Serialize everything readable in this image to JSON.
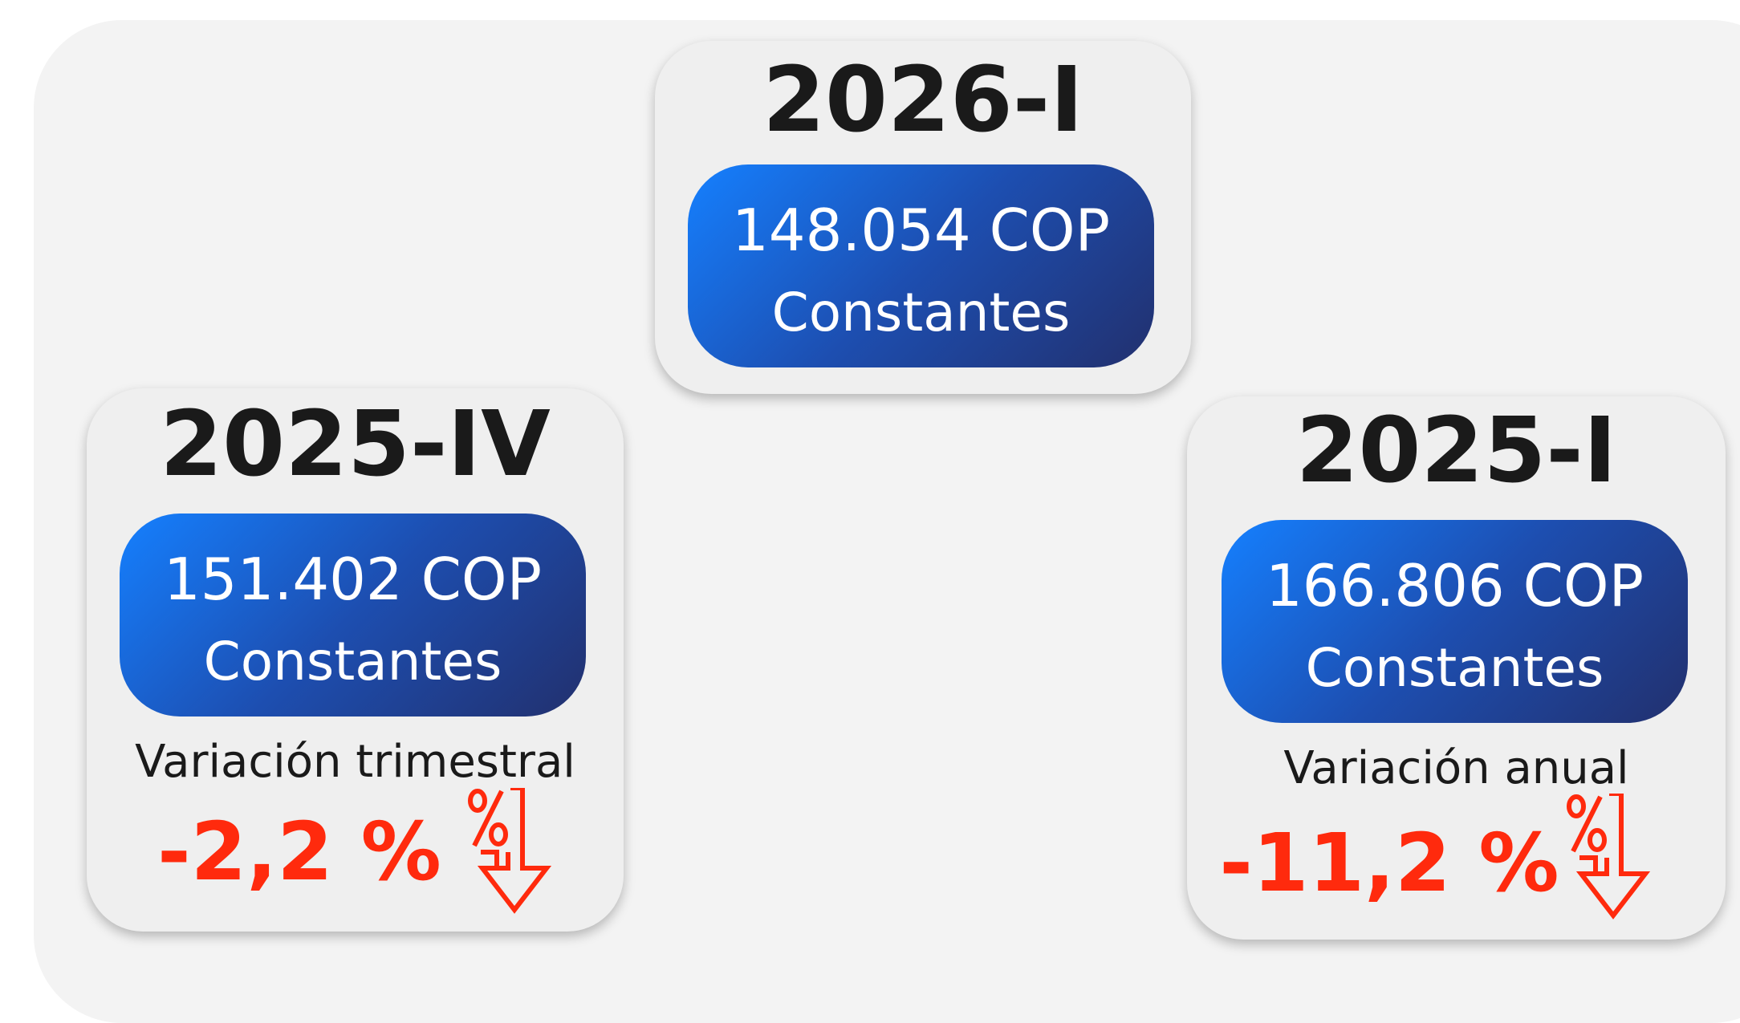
{
  "cards": [
    {
      "period": "2026-I",
      "value": "148.054 COP",
      "unit": "Constantes"
    },
    {
      "period": "2025-IV",
      "value": "151.402 COP",
      "unit": "Constantes",
      "variation_label": "Variación trimestral",
      "variation": "-2,2 %"
    },
    {
      "period": "2025-I",
      "value": "166.806 COP",
      "unit": "Constantes",
      "variation_label": "Variación anual",
      "variation": "-11,2 %"
    }
  ]
}
